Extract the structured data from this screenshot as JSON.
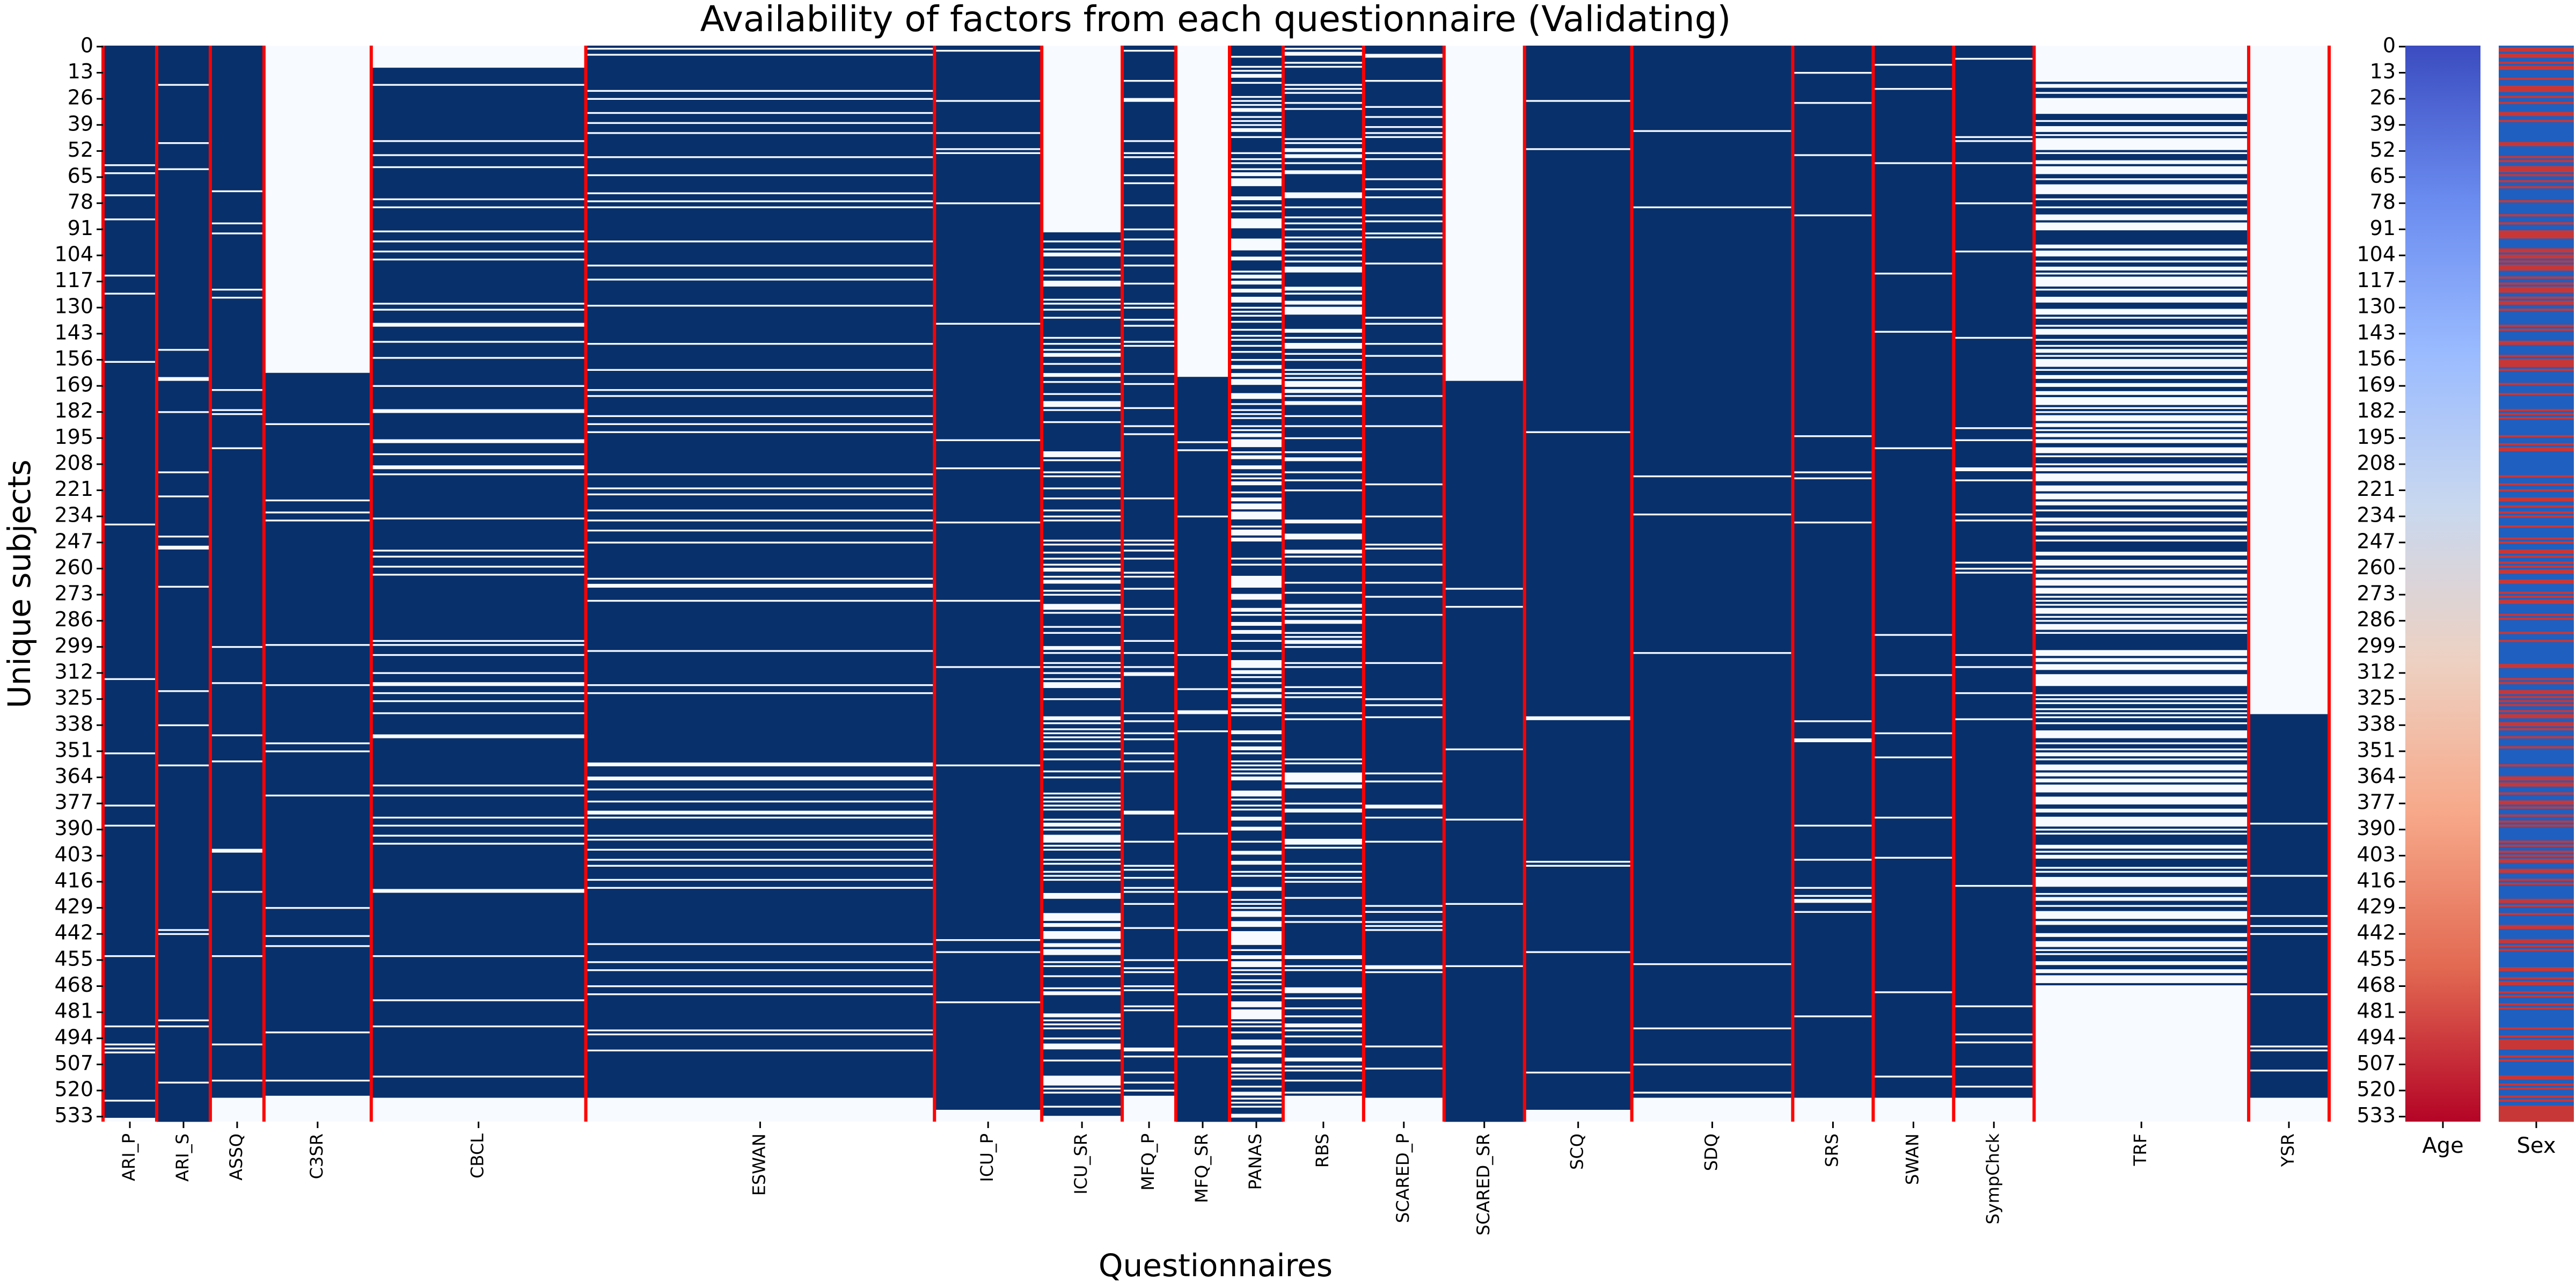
{
  "chart_data": [
    {
      "type": "heatmap",
      "title": "Availability of factors from each questionnaire (Validating)",
      "xlabel": "Questionnaires",
      "ylabel": "Unique subjects",
      "y_range": [
        0,
        536
      ],
      "y_ticks": [
        0,
        13,
        26,
        39,
        52,
        65,
        78,
        91,
        104,
        117,
        130,
        143,
        156,
        169,
        182,
        195,
        208,
        221,
        234,
        247,
        260,
        273,
        286,
        299,
        312,
        325,
        338,
        351,
        364,
        377,
        390,
        403,
        416,
        429,
        442,
        455,
        468,
        481,
        494,
        507,
        520,
        533
      ],
      "colors": {
        "available": "#08306b",
        "missing": "#f7fbff",
        "divider": "#ff0000"
      },
      "columns": [
        {
          "name": "ARI_P",
          "width": 2,
          "first_row": 0,
          "missing_rate": 0.03,
          "available_until": 534
        },
        {
          "name": "ARI_S",
          "width": 2,
          "first_row": 0,
          "missing_rate": 0.03,
          "available_until": 536
        },
        {
          "name": "ASSQ",
          "width": 2,
          "first_row": 0,
          "missing_rate": 0.03,
          "available_until": 524
        },
        {
          "name": "C3SR",
          "width": 4,
          "first_row": 163,
          "missing_rate": 0.03,
          "available_until": 523
        },
        {
          "name": "CBCL",
          "width": 8,
          "first_row": 11,
          "missing_rate": 0.1,
          "available_until": 524
        },
        {
          "name": "ESWAN",
          "width": 13,
          "first_row": 0,
          "missing_rate": 0.12,
          "available_until": 524
        },
        {
          "name": "ICU_P",
          "width": 4,
          "first_row": 0,
          "missing_rate": 0.04,
          "available_until": 530
        },
        {
          "name": "ICU_SR",
          "width": 3,
          "first_row": 91,
          "missing_rate": 0.3,
          "available_until": 533
        },
        {
          "name": "MFQ_P",
          "width": 2,
          "first_row": 0,
          "missing_rate": 0.12,
          "available_until": 523
        },
        {
          "name": "MFQ_SR",
          "width": 2,
          "first_row": 165,
          "missing_rate": 0.04,
          "available_until": 536
        },
        {
          "name": "PANAS",
          "width": 2,
          "first_row": 0,
          "missing_rate": 0.45,
          "available_until": 536
        },
        {
          "name": "RBS",
          "width": 3,
          "first_row": 0,
          "missing_rate": 0.28,
          "available_until": 524
        },
        {
          "name": "SCARED_P",
          "width": 3,
          "first_row": 0,
          "missing_rate": 0.1,
          "available_until": 524
        },
        {
          "name": "SCARED_SR",
          "width": 3,
          "first_row": 167,
          "missing_rate": 0.02,
          "available_until": 536
        },
        {
          "name": "SCQ",
          "width": 4,
          "first_row": 0,
          "missing_rate": 0.02,
          "available_until": 530
        },
        {
          "name": "SDQ",
          "width": 6,
          "first_row": 0,
          "missing_rate": 0.02,
          "available_until": 524
        },
        {
          "name": "SRS",
          "width": 3,
          "first_row": 0,
          "missing_rate": 0.03,
          "available_until": 524
        },
        {
          "name": "SWAN",
          "width": 3,
          "first_row": 0,
          "missing_rate": 0.02,
          "available_until": 524
        },
        {
          "name": "SympChck",
          "width": 3,
          "first_row": 0,
          "missing_rate": 0.03,
          "available_until": 524
        },
        {
          "name": "TRF",
          "width": 8,
          "first_row": 18,
          "missing_rate": 0.55,
          "available_until": 470
        },
        {
          "name": "YSR",
          "width": 3,
          "first_row": 333,
          "missing_rate": 0.05,
          "available_until": 524
        }
      ]
    },
    {
      "type": "heatmap",
      "xlabel": "",
      "columns": [
        "Age",
        "Sex"
      ],
      "y_ticks": [
        0,
        13,
        26,
        39,
        52,
        65,
        78,
        91,
        104,
        117,
        130,
        143,
        156,
        169,
        182,
        195,
        208,
        221,
        234,
        247,
        260,
        273,
        286,
        299,
        312,
        325,
        338,
        351,
        364,
        377,
        390,
        403,
        416,
        429,
        442,
        455,
        468,
        481,
        494,
        507,
        520,
        533
      ],
      "age_gradient": [
        "#3b4cc0",
        "#6a8bef",
        "#9abbff",
        "#c9d8ef",
        "#edd1c2",
        "#f7a889",
        "#e26952",
        "#b40426"
      ],
      "sex_colors": {
        "male": "#1f5fbf",
        "female": "#c83737"
      }
    }
  ]
}
